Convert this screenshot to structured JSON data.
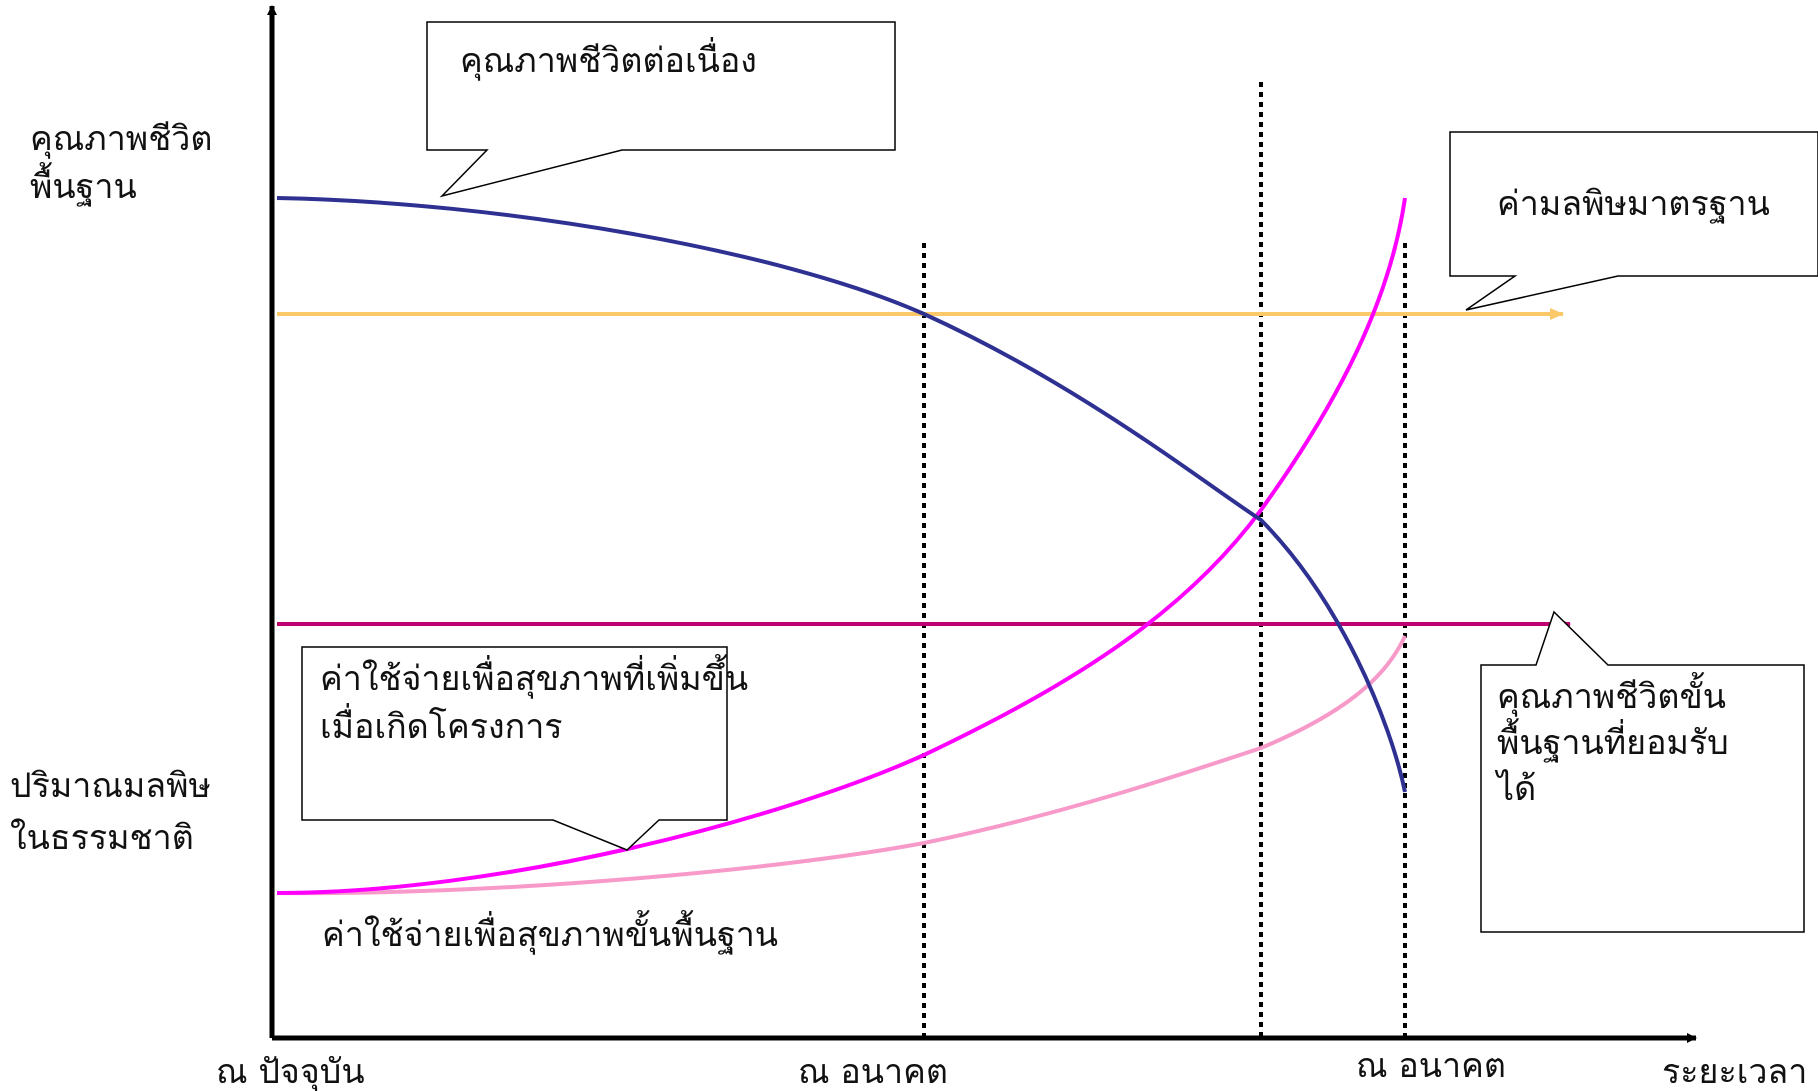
{
  "axes": {
    "y_label_top": [
      "คุณภาพชีวิต",
      "พื้นฐาน"
    ],
    "y_label_bottom": [
      "ปริมาณมลพิษ",
      "ในธรรมชาติ"
    ],
    "x_label": "ระยะเวลา",
    "x_ticks": {
      "present": "ณ ปัจจุบัน",
      "future_1": "ณ อนาคต",
      "future_2": "ณ อนาคต"
    }
  },
  "callouts": {
    "continuous_quality": [
      "คุณภาพชีวิตต่อเนื่อง"
    ],
    "pollution_standard": [
      "ค่ามลพิษมาตรฐาน"
    ],
    "acceptable_quality": [
      "คุณภาพชีวิตขั้น",
      "พื้นฐานที่ยอมรับ",
      "ได้"
    ],
    "increased_health_cost": [
      "ค่าใช้จ่ายเพื่อสุขภาพที่เพิ่มขึ้น",
      "เมื่อเกิดโครงการ"
    ]
  },
  "labels": {
    "basic_health_cost": "ค่าใช้จ่ายเพื่อสุขภาพขั้นพื้นฐาน"
  },
  "colors": {
    "axis": "#000000",
    "quality_curve": "#2e3192",
    "pollution_standard_line": "#fcc96a",
    "acceptable_quality_line": "#c0006e",
    "increased_cost_curve": "#ff00ff",
    "basic_cost_curve": "#f79ac9",
    "dotted_lines": "#000000"
  }
}
